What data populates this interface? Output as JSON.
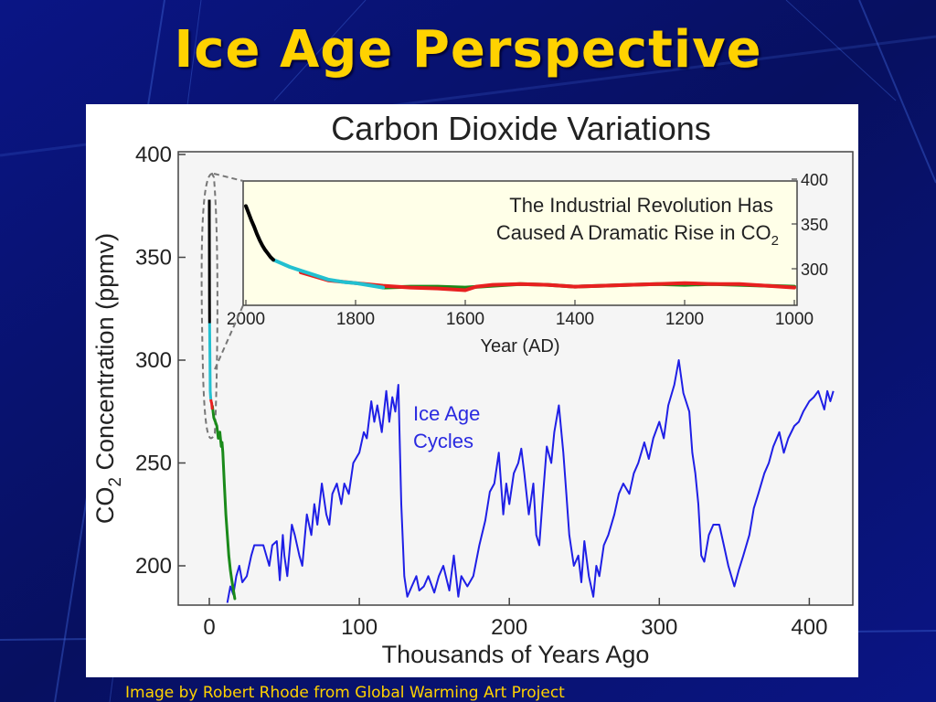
{
  "slide": {
    "title": "Ice Age Perspective",
    "credit": "Image by Robert Rhode from Global Warming Art Project",
    "background_color": "#08106b",
    "title_color": "#ffd200"
  },
  "chart_data": [
    {
      "type": "line",
      "title": "Carbon Dioxide Variations",
      "xlabel": "Thousands of Years Ago",
      "ylabel_main": "CO",
      "ylabel_sub": "2",
      "ylabel_rest": " Concentration (ppmv)",
      "xlim": [
        0,
        420
      ],
      "ylim": [
        180,
        400
      ],
      "xticks": [
        0,
        100,
        200,
        300,
        400
      ],
      "yticks": [
        200,
        250,
        300,
        350,
        400
      ],
      "annotation": [
        "Ice Age",
        "Cycles"
      ],
      "grid": false,
      "series": [
        {
          "color": "#1f1fe6",
          "x": [
            12,
            14,
            16,
            18,
            20,
            22,
            25,
            28,
            30,
            33,
            36,
            40,
            42,
            45,
            47,
            49,
            50,
            52,
            55,
            57,
            60,
            62,
            65,
            68,
            70,
            72,
            75,
            78,
            80,
            82,
            85,
            88,
            90,
            93,
            96,
            100,
            103,
            105,
            108,
            110,
            112,
            115,
            118,
            120,
            122,
            124,
            126,
            128,
            130,
            132,
            135,
            138,
            140,
            143,
            146,
            150,
            153,
            156,
            160,
            163,
            166,
            168,
            172,
            176,
            180,
            184,
            187,
            190,
            193,
            196,
            198,
            200,
            203,
            206,
            208,
            210,
            213,
            216,
            218,
            220,
            222,
            225,
            228,
            230,
            233,
            236,
            238,
            240,
            243,
            246,
            248,
            250,
            253,
            256,
            258,
            260,
            263,
            266,
            270,
            273,
            276,
            280,
            283,
            286,
            290,
            293,
            296,
            300,
            303,
            306,
            310,
            313,
            316,
            320,
            322,
            324,
            326,
            328,
            330,
            333,
            336,
            340,
            343,
            346,
            350,
            353,
            356,
            360,
            363,
            366,
            370,
            373,
            376,
            380,
            383,
            386,
            390,
            393,
            396,
            400,
            403,
            406,
            410,
            412,
            414,
            416
          ],
          "y": [
            182,
            190,
            186,
            195,
            200,
            192,
            195,
            205,
            210,
            210,
            210,
            200,
            210,
            212,
            193,
            215,
            205,
            195,
            220,
            215,
            205,
            200,
            225,
            215,
            230,
            220,
            240,
            225,
            220,
            235,
            240,
            230,
            240,
            235,
            250,
            255,
            265,
            262,
            280,
            270,
            278,
            265,
            285,
            270,
            282,
            275,
            288,
            230,
            195,
            185,
            190,
            195,
            188,
            190,
            195,
            187,
            195,
            200,
            188,
            205,
            185,
            195,
            190,
            195,
            210,
            222,
            236,
            240,
            255,
            225,
            240,
            230,
            245,
            250,
            257,
            245,
            225,
            240,
            215,
            210,
            230,
            258,
            250,
            265,
            278,
            255,
            235,
            215,
            200,
            205,
            192,
            212,
            195,
            185,
            200,
            195,
            210,
            215,
            225,
            235,
            240,
            235,
            245,
            250,
            260,
            252,
            262,
            270,
            262,
            278,
            288,
            300,
            284,
            275,
            255,
            245,
            230,
            205,
            202,
            215,
            220,
            220,
            210,
            200,
            190,
            198,
            205,
            215,
            228,
            235,
            245,
            250,
            258,
            265,
            255,
            262,
            268,
            270,
            275,
            280,
            282,
            285,
            276,
            285,
            280,
            285
          ]
        },
        {
          "color": "#1a8a1a",
          "x": [
            16,
            17,
            15,
            14,
            13,
            12.5,
            12,
            11,
            10,
            9,
            8.5,
            8,
            7,
            6,
            5,
            4,
            3,
            2.5,
            2
          ],
          "y": [
            188,
            184,
            193,
            198,
            205,
            210,
            215,
            225,
            240,
            255,
            260,
            258,
            265,
            262,
            268,
            270,
            272,
            275,
            278
          ]
        },
        {
          "color": "#e82020",
          "x": [
            2,
            1.6,
            1.2,
            1.0
          ],
          "y": [
            276,
            279,
            280,
            281
          ]
        },
        {
          "color": "#22c0d0",
          "x": [
            1.0,
            0.6,
            0.4,
            0.2
          ],
          "y": [
            281,
            285,
            300,
            318
          ]
        },
        {
          "color": "#000000",
          "x": [
            0.2,
            0.1,
            0.05,
            0.02,
            0.0
          ],
          "y": [
            318,
            330,
            350,
            370,
            378
          ]
        }
      ]
    },
    {
      "type": "line",
      "title": "",
      "xlabel": "Year (AD)",
      "annotation_line1": "The Industrial Revolution Has",
      "annotation_line2_main": "Caused A Dramatic Rise in CO",
      "annotation_line2_sub": "2",
      "xlim": [
        2000,
        1000
      ],
      "ylim": [
        265,
        410
      ],
      "xticks": [
        2000,
        1800,
        1600,
        1400,
        1200,
        1000
      ],
      "yticks": [
        300,
        350,
        400
      ],
      "background": "#ffffe8",
      "grid": false,
      "series": [
        {
          "color": "#1a8a1a",
          "x": [
            1750,
            1700,
            1650,
            1600,
            1550,
            1500,
            1450,
            1400,
            1350,
            1300,
            1250,
            1200,
            1150,
            1100,
            1050,
            1000
          ],
          "y": [
            279,
            280,
            280,
            279,
            281,
            283,
            282,
            280,
            281,
            282,
            283,
            282,
            283,
            282,
            281,
            280
          ]
        },
        {
          "color": "#e82020",
          "x": [
            1900,
            1850,
            1800,
            1750,
            1700,
            1650,
            1600,
            1580,
            1550,
            1500,
            1450,
            1400,
            1350,
            1300,
            1250,
            1200,
            1150,
            1100,
            1050,
            1000
          ],
          "y": [
            296,
            287,
            284,
            281,
            279,
            278,
            276,
            280,
            282,
            283,
            282,
            280,
            281,
            282,
            283,
            284,
            283,
            283,
            281,
            279
          ]
        },
        {
          "color": "#22c0d0",
          "x": [
            1950,
            1920,
            1900,
            1880,
            1850,
            1820,
            1800,
            1780,
            1750
          ],
          "y": [
            310,
            302,
            298,
            294,
            288,
            285,
            284,
            282,
            279
          ]
        },
        {
          "color": "#000000",
          "x": [
            2000,
            1995,
            1990,
            1985,
            1980,
            1975,
            1970,
            1965,
            1960,
            1955,
            1950
          ],
          "y": [
            370,
            362,
            354,
            347,
            339,
            332,
            326,
            321,
            317,
            313,
            310
          ]
        }
      ]
    }
  ]
}
